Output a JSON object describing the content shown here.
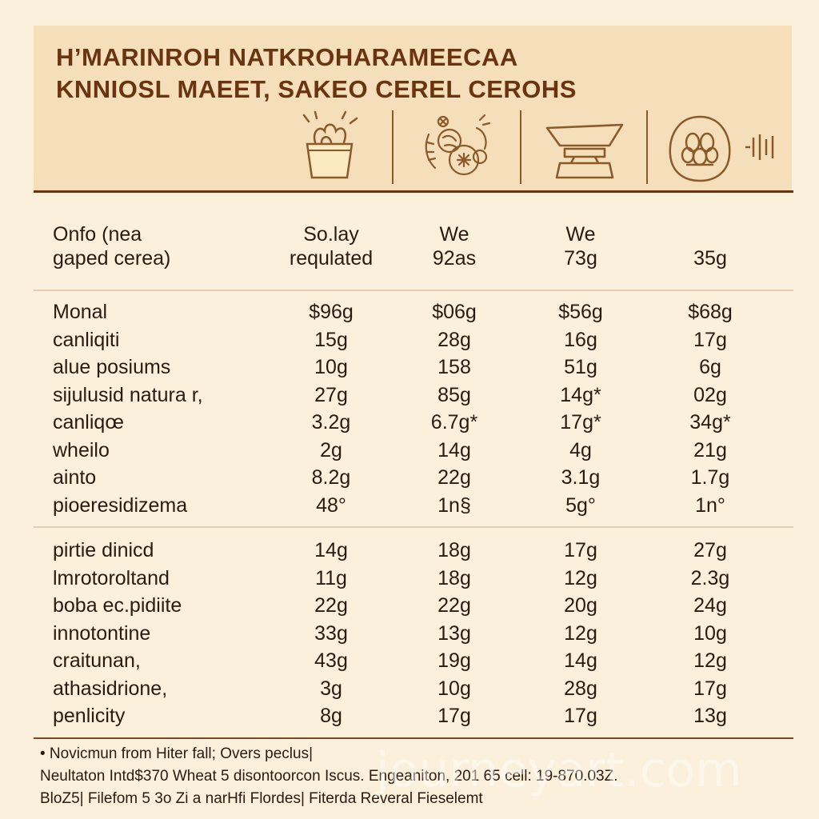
{
  "title": {
    "line1": "H’MARINROH NATKROHARAMEECAA",
    "line2": "KNNIOSL MAEET, SAKEO CEREL CEROHS"
  },
  "icons": [
    "cereal-box-icon",
    "fruit-nut-icon",
    "scale-icon",
    "grain-icon",
    "barcode-icon"
  ],
  "columns": {
    "label_line1": "Onfo (neа",
    "label_line2": "gaped cerea)",
    "col1_line1": "So.lay",
    "col1_line2": "requlated",
    "col2_line1": "We",
    "col2_line2": "92as",
    "col3_line1": "We",
    "col3_line2": "73g",
    "col4_line1": "",
    "col4_line2": "35g"
  },
  "rows_group1": [
    {
      "label": "Monal",
      "v": [
        "$96g",
        "$06g",
        "$56g",
        "$68g"
      ]
    },
    {
      "label": "canliqiti",
      "v": [
        "15g",
        "28g",
        "16g",
        "17g"
      ]
    },
    {
      "label": "alue posiums",
      "v": [
        "10g",
        "158",
        "51g",
        "6g"
      ]
    },
    {
      "label": "sijulusid natura r,",
      "v": [
        "27g",
        "85g",
        "14g*",
        "02g"
      ]
    },
    {
      "label": "canliqœ",
      "v": [
        "3.2g",
        "6.7g*",
        "17g*",
        "34g*"
      ]
    },
    {
      "label": "wheilo",
      "v": [
        "2g",
        "14g",
        "4g",
        "21g"
      ]
    },
    {
      "label": "ainto",
      "v": [
        "8.2g",
        "22g",
        "3.1g",
        "1.7g"
      ]
    },
    {
      "label": "pioeresidizema",
      "v": [
        "48°",
        "1n§",
        "5g°",
        "1n°"
      ]
    }
  ],
  "rows_group2": [
    {
      "label": "pirtie dinicd",
      "v": [
        "14g",
        "18g",
        "17g",
        "27g"
      ]
    },
    {
      "label": "lmrotoroltand",
      "v": [
        "11g",
        "18g",
        "12g",
        "2.3g"
      ]
    },
    {
      "label": "boba ec.pidiite",
      "v": [
        "22g",
        "22g",
        "20g",
        "24g"
      ]
    },
    {
      "label": "innotontine",
      "v": [
        "33g",
        "13g",
        "12g",
        "10g"
      ]
    },
    {
      "label": "craitunan,",
      "v": [
        "43g",
        "19g",
        "14g",
        "12g"
      ]
    },
    {
      "label": "athasidrione,",
      "v": [
        "3g",
        "10g",
        "28g",
        "17g"
      ]
    },
    {
      "label": "penlicity",
      "v": [
        "8g",
        "17g",
        "17g",
        "13g"
      ]
    }
  ],
  "footer": {
    "line1": "• Novicmun from Hiter fall;  Overs peclus|",
    "line2": "Neultaton Intd$370 Wheat 5 disontoorcon Iscus. Engeaniton, 201 65 cell: 19-870.03Z.",
    "line3": "BloZ5| Filefom 5 3o Zi a narHfi Flordes| Fiterda Reveral Fieselemt"
  },
  "watermark": "journeyart.com"
}
